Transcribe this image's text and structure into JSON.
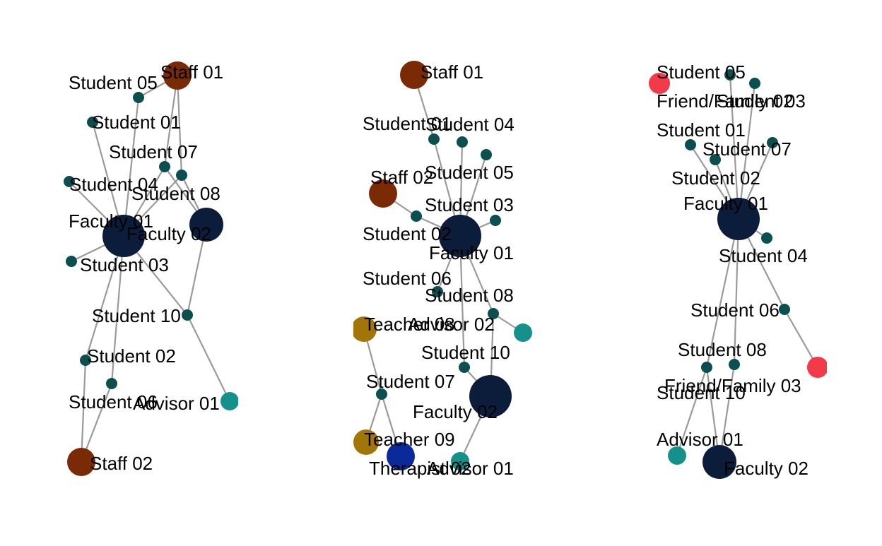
{
  "colors": {
    "edge": "#9a9a9a",
    "student": "#0b4f4f",
    "staff": "#7a2a05",
    "faculty": "#0b1d3a",
    "advisor": "#15908a",
    "teacher": "#a17507",
    "therapist": "#0b2a9a",
    "friend_family": "#f23a4b"
  },
  "networks": [
    {
      "id": "network-1",
      "nodes": [
        {
          "id": "Staff 01",
          "label": "Staff 01",
          "role": "staff"
        },
        {
          "id": "Student 05",
          "label": "Student 05",
          "role": "student"
        },
        {
          "id": "Student 01",
          "label": "Student 01",
          "role": "student"
        },
        {
          "id": "Student 07",
          "label": "Student 07",
          "role": "student"
        },
        {
          "id": "Student 04",
          "label": "Student 04",
          "role": "student"
        },
        {
          "id": "Student 08",
          "label": "Student 08",
          "role": "student"
        },
        {
          "id": "Faculty 01",
          "label": "Faculty 01",
          "role": "faculty_big"
        },
        {
          "id": "Faculty 02",
          "label": "Faculty 02",
          "role": "faculty"
        },
        {
          "id": "Student 03",
          "label": "Student 03",
          "role": "student"
        },
        {
          "id": "Student 10",
          "label": "Student 10",
          "role": "student"
        },
        {
          "id": "Student 02",
          "label": "Student 02",
          "role": "student"
        },
        {
          "id": "Student 06",
          "label": "Student 06",
          "role": "student"
        },
        {
          "id": "Advisor 01",
          "label": "Advisor 01",
          "role": "advisor"
        },
        {
          "id": "Staff 02",
          "label": "Staff 02",
          "role": "staff"
        }
      ],
      "edges": [
        [
          "Student 05",
          "Faculty 01"
        ],
        [
          "Student 01",
          "Faculty 01"
        ],
        [
          "Student 04",
          "Faculty 01"
        ],
        [
          "Student 03",
          "Faculty 01"
        ],
        [
          "Student 07",
          "Faculty 01"
        ],
        [
          "Student 08",
          "Faculty 01"
        ],
        [
          "Student 07",
          "Faculty 02"
        ],
        [
          "Student 08",
          "Faculty 02"
        ],
        [
          "Staff 01",
          "Student 05"
        ],
        [
          "Staff 01",
          "Student 07"
        ],
        [
          "Staff 01",
          "Student 08"
        ],
        [
          "Faculty 01",
          "Student 02"
        ],
        [
          "Faculty 01",
          "Student 06"
        ],
        [
          "Faculty 01",
          "Student 10"
        ],
        [
          "Faculty 02",
          "Student 10"
        ],
        [
          "Student 10",
          "Advisor 01"
        ],
        [
          "Student 02",
          "Staff 02"
        ],
        [
          "Student 06",
          "Staff 02"
        ]
      ]
    },
    {
      "id": "network-2",
      "nodes": [
        {
          "id": "Staff 01",
          "label": "Staff 01",
          "role": "staff"
        },
        {
          "id": "Student 01",
          "label": "Student 01",
          "role": "student"
        },
        {
          "id": "Student 04",
          "label": "Student 04",
          "role": "student"
        },
        {
          "id": "Student 05",
          "label": "Student 05",
          "role": "student"
        },
        {
          "id": "Staff 02",
          "label": "Staff 02",
          "role": "staff"
        },
        {
          "id": "Student 02",
          "label": "Student 02",
          "role": "student"
        },
        {
          "id": "Student 03",
          "label": "Student 03",
          "role": "student"
        },
        {
          "id": "Faculty 01",
          "label": "Faculty 01",
          "role": "faculty_big"
        },
        {
          "id": "Student 06",
          "label": "Student 06",
          "role": "student"
        },
        {
          "id": "Student 08",
          "label": "Student 08",
          "role": "student"
        },
        {
          "id": "Teacher 08",
          "label": "Teacher 08",
          "role": "teacher"
        },
        {
          "id": "Advisor 02",
          "label": "Advisor 02",
          "role": "advisor"
        },
        {
          "id": "Student 10",
          "label": "Student 10",
          "role": "student"
        },
        {
          "id": "Student 07",
          "label": "Student 07",
          "role": "student"
        },
        {
          "id": "Faculty 02",
          "label": "Faculty 02",
          "role": "faculty_big"
        },
        {
          "id": "Teacher 09",
          "label": "Teacher 09",
          "role": "teacher"
        },
        {
          "id": "Therapist 02",
          "label": "Therapist 02",
          "role": "therapist"
        },
        {
          "id": "Advisor 01",
          "label": "Advisor 01",
          "role": "advisor"
        }
      ],
      "edges": [
        [
          "Staff 01",
          "Student 01"
        ],
        [
          "Student 01",
          "Faculty 01"
        ],
        [
          "Student 04",
          "Faculty 01"
        ],
        [
          "Student 05",
          "Faculty 01"
        ],
        [
          "Staff 02",
          "Student 02"
        ],
        [
          "Student 02",
          "Faculty 01"
        ],
        [
          "Student 03",
          "Faculty 01"
        ],
        [
          "Faculty 01",
          "Student 06"
        ],
        [
          "Faculty 01",
          "Student 08"
        ],
        [
          "Faculty 01",
          "Student 10"
        ],
        [
          "Student 08",
          "Advisor 02"
        ],
        [
          "Student 08",
          "Faculty 02"
        ],
        [
          "Student 10",
          "Faculty 02"
        ],
        [
          "Teacher 08",
          "Student 07"
        ],
        [
          "Student 07",
          "Teacher 09"
        ],
        [
          "Student 07",
          "Therapist 02"
        ],
        [
          "Faculty 02",
          "Advisor 01"
        ]
      ]
    },
    {
      "id": "network-3",
      "nodes": [
        {
          "id": "Friend/Family 02",
          "label": "Friend/Family 02",
          "role": "friend_family"
        },
        {
          "id": "Student 05",
          "label": "Student 05",
          "role": "student"
        },
        {
          "id": "Student 03",
          "label": "Student 03",
          "role": "student"
        },
        {
          "id": "Student 01",
          "label": "Student 01",
          "role": "student"
        },
        {
          "id": "Student 07",
          "label": "Student 07",
          "role": "student"
        },
        {
          "id": "Student 02",
          "label": "Student 02",
          "role": "student"
        },
        {
          "id": "Faculty 01",
          "label": "Faculty 01",
          "role": "faculty_big"
        },
        {
          "id": "Student 04",
          "label": "Student 04",
          "role": "student"
        },
        {
          "id": "Student 06",
          "label": "Student 06",
          "role": "student"
        },
        {
          "id": "Friend/Family 03",
          "label": "Friend/Family 03",
          "role": "friend_family"
        },
        {
          "id": "Student 08",
          "label": "Student 08",
          "role": "student"
        },
        {
          "id": "Student 10",
          "label": "Student 10",
          "role": "student"
        },
        {
          "id": "Advisor 01",
          "label": "Advisor 01",
          "role": "advisor"
        },
        {
          "id": "Faculty 02",
          "label": "Faculty 02",
          "role": "faculty"
        }
      ],
      "edges": [
        [
          "Student 05",
          "Faculty 01"
        ],
        [
          "Student 03",
          "Faculty 01"
        ],
        [
          "Student 01",
          "Faculty 01"
        ],
        [
          "Student 07",
          "Faculty 01"
        ],
        [
          "Student 02",
          "Faculty 01"
        ],
        [
          "Faculty 01",
          "Student 04"
        ],
        [
          "Faculty 01",
          "Student 06"
        ],
        [
          "Student 06",
          "Friend/Family 03"
        ],
        [
          "Faculty 01",
          "Student 08"
        ],
        [
          "Faculty 01",
          "Student 10"
        ],
        [
          "Student 08",
          "Advisor 01"
        ],
        [
          "Student 08",
          "Faculty 02"
        ],
        [
          "Student 10",
          "Faculty 02"
        ]
      ]
    }
  ]
}
